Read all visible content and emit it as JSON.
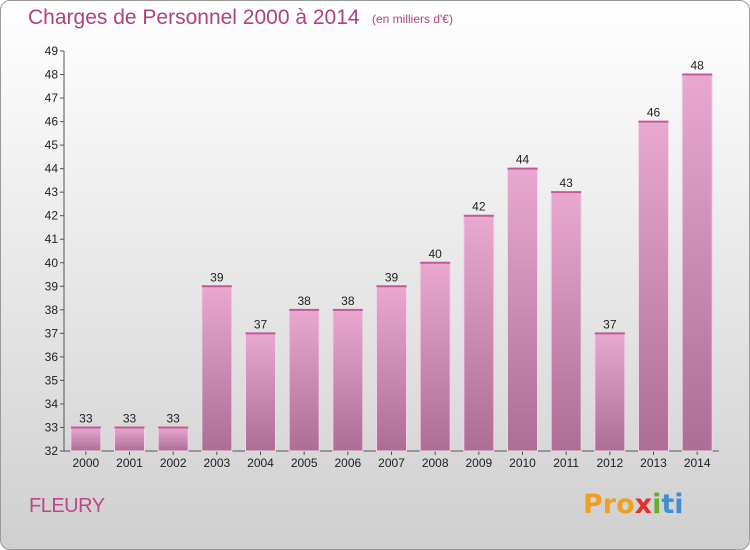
{
  "chart_data": {
    "type": "bar",
    "title": "Charges de Personnel 2000 à 2014",
    "subtitle": "(en milliers d'€)",
    "categories": [
      "2000",
      "2001",
      "2002",
      "2003",
      "2004",
      "2005",
      "2006",
      "2007",
      "2008",
      "2009",
      "2010",
      "2011",
      "2012",
      "2013",
      "2014"
    ],
    "values": [
      33,
      33,
      33,
      39,
      37,
      38,
      38,
      39,
      40,
      42,
      44,
      43,
      37,
      46,
      48
    ],
    "ylim": [
      32,
      49
    ],
    "yticks": [
      32,
      33,
      34,
      35,
      36,
      37,
      38,
      39,
      40,
      41,
      42,
      43,
      44,
      45,
      46,
      47,
      48,
      49
    ],
    "grid": false,
    "bar_color_top": "#e8a5cd",
    "bar_color_bottom": "#b06f97"
  },
  "footer": {
    "city": "FLEURY",
    "logo_parts": [
      "Pro",
      "x",
      "i",
      "ti"
    ]
  },
  "colors": {
    "title": "#b0417f",
    "city": "#c2448a"
  }
}
